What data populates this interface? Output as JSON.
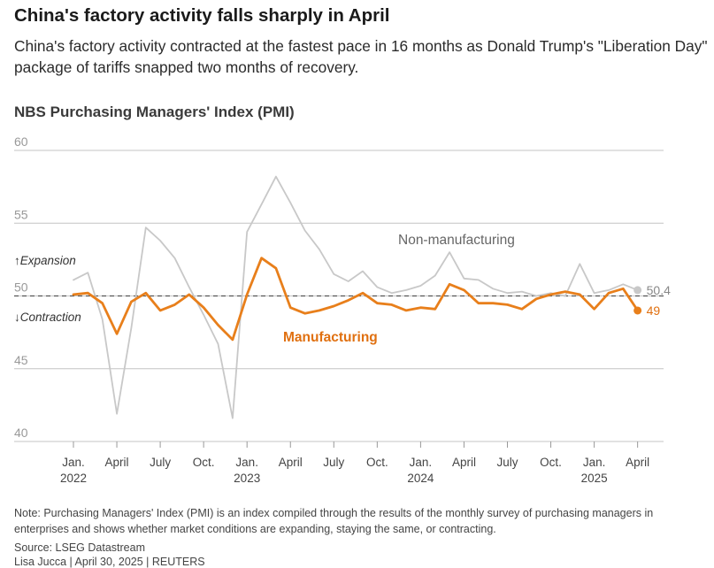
{
  "header": {
    "title": "China's factory activity falls sharply in April",
    "subtitle": "China's factory activity contracted at the fastest pace in 16 months as Donald Trump's \"Liberation Day\" package of tariffs snapped two months of recovery."
  },
  "colors": {
    "manufacturing": "#e87f1b",
    "non_manufacturing": "#c8c8c8",
    "gridline": "#c4c4c4",
    "reference_line": "#555555",
    "tick_text": "#999999"
  },
  "chart_data": {
    "type": "line",
    "title": "NBS Purchasing Managers' Index (PMI)",
    "ylim": [
      40,
      60
    ],
    "yticks": [
      40,
      45,
      50,
      55,
      60
    ],
    "reference_value": 50,
    "grid": true,
    "x": [
      "2022-01",
      "2022-02",
      "2022-03",
      "2022-04",
      "2022-05",
      "2022-06",
      "2022-07",
      "2022-08",
      "2022-09",
      "2022-10",
      "2022-11",
      "2022-12",
      "2023-01",
      "2023-02",
      "2023-03",
      "2023-04",
      "2023-05",
      "2023-06",
      "2023-07",
      "2023-08",
      "2023-09",
      "2023-10",
      "2023-11",
      "2023-12",
      "2024-01",
      "2024-02",
      "2024-03",
      "2024-04",
      "2024-05",
      "2024-06",
      "2024-07",
      "2024-08",
      "2024-09",
      "2024-10",
      "2024-11",
      "2024-12",
      "2025-01",
      "2025-02",
      "2025-03",
      "2025-04"
    ],
    "x_tick_labels": [
      {
        "index": 0,
        "month": "Jan.",
        "year": "2022"
      },
      {
        "index": 3,
        "month": "April",
        "year": ""
      },
      {
        "index": 6,
        "month": "July",
        "year": ""
      },
      {
        "index": 9,
        "month": "Oct.",
        "year": ""
      },
      {
        "index": 12,
        "month": "Jan.",
        "year": "2023"
      },
      {
        "index": 15,
        "month": "April",
        "year": ""
      },
      {
        "index": 18,
        "month": "July",
        "year": ""
      },
      {
        "index": 21,
        "month": "Oct.",
        "year": ""
      },
      {
        "index": 24,
        "month": "Jan.",
        "year": "2024"
      },
      {
        "index": 27,
        "month": "April",
        "year": ""
      },
      {
        "index": 30,
        "month": "July",
        "year": ""
      },
      {
        "index": 33,
        "month": "Oct.",
        "year": ""
      },
      {
        "index": 36,
        "month": "Jan.",
        "year": "2025"
      },
      {
        "index": 39,
        "month": "April",
        "year": ""
      }
    ],
    "series": [
      {
        "name": "Non-manufacturing",
        "label": "Non-manufacturing",
        "color": "#c8c8c8",
        "values": [
          51.1,
          51.6,
          48.4,
          41.9,
          47.8,
          54.7,
          53.8,
          52.6,
          50.6,
          48.7,
          46.7,
          41.6,
          54.4,
          56.3,
          58.2,
          56.4,
          54.5,
          53.2,
          51.5,
          51.0,
          51.7,
          50.6,
          50.2,
          50.4,
          50.7,
          51.4,
          53.0,
          51.2,
          51.1,
          50.5,
          50.2,
          50.3,
          50.0,
          50.2,
          50.0,
          52.2,
          50.2,
          50.4,
          50.8,
          50.4
        ],
        "end_label": "50.4"
      },
      {
        "name": "Manufacturing",
        "label": "Manufacturing",
        "color": "#e87f1b",
        "values": [
          50.1,
          50.2,
          49.5,
          47.4,
          49.6,
          50.2,
          49.0,
          49.4,
          50.1,
          49.2,
          48.0,
          47.0,
          50.1,
          52.6,
          51.9,
          49.2,
          48.8,
          49.0,
          49.3,
          49.7,
          50.2,
          49.5,
          49.4,
          49.0,
          49.2,
          49.1,
          50.8,
          50.4,
          49.5,
          49.5,
          49.4,
          49.1,
          49.8,
          50.1,
          50.3,
          50.1,
          49.1,
          50.2,
          50.5,
          49.0
        ],
        "end_label": "49"
      }
    ],
    "annotations": {
      "expansion": "↑Expansion",
      "contraction": "↓Contraction"
    }
  },
  "footer": {
    "note": "Note: Purchasing Managers' Index (PMI) is an index compiled through the results of the monthly survey of purchasing managers in enterprises and shows whether market conditions are expanding, staying the same, or contracting.",
    "source": "Source: LSEG Datastream",
    "credit": "Lisa Jucca | April 30, 2025 | REUTERS"
  }
}
